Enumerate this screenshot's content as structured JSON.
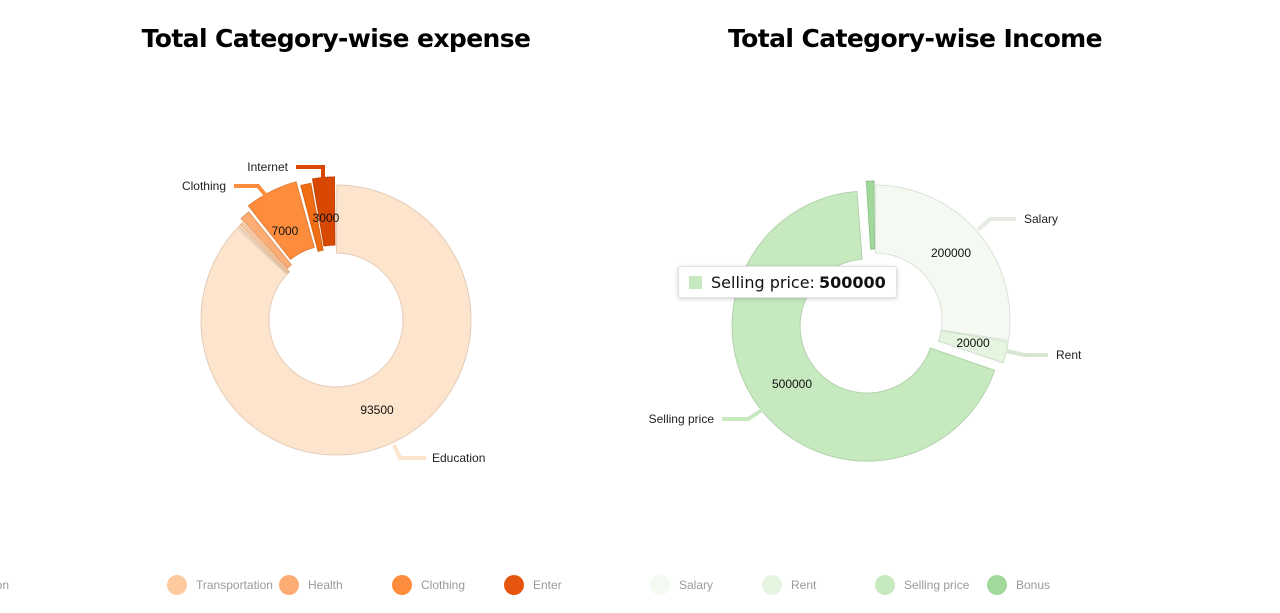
{
  "chart_data": [
    {
      "type": "pie",
      "variant": "donut",
      "title": "Total Category-wise expense",
      "slices": [
        {
          "label": "Education",
          "value": 93500,
          "color": "#fde4cd"
        },
        {
          "label": "",
          "value": 400,
          "color": "#fdd9b4"
        },
        {
          "label": "",
          "value": 600,
          "color": "#fdcaa0"
        },
        {
          "label": "",
          "value": 1500,
          "color": "#fdad73"
        },
        {
          "label": "Clothing",
          "value": 7000,
          "color": "#fd8c3c"
        },
        {
          "label": "",
          "value": 1500,
          "color": "#f16d13"
        },
        {
          "label": "Internet",
          "value": 3000,
          "color": "#d94801"
        }
      ],
      "data_labels": [
        "93500",
        "7000",
        "3000"
      ],
      "legend": [
        "ation",
        "Transportation",
        "Health",
        "Clothing",
        "Enter"
      ],
      "legend_colors": [
        "#fdd9b4",
        "#fdcaa0",
        "#fdad73",
        "#fd8c3c",
        "#e6550d"
      ],
      "legend_position": "bottom"
    },
    {
      "type": "pie",
      "variant": "donut",
      "title": "Total Category-wise Income",
      "slices": [
        {
          "label": "Salary",
          "value": 200000,
          "color": "#f4faf2"
        },
        {
          "label": "Rent",
          "value": 20000,
          "color": "#e5f5e0"
        },
        {
          "label": "Selling price",
          "value": 500000,
          "color": "#c7e9c0"
        },
        {
          "label": "",
          "value": 8000,
          "color": "#a1d99b"
        }
      ],
      "data_labels": [
        "200000",
        "20000",
        "500000"
      ],
      "legend": [
        "Salary",
        "Rent",
        "Selling price",
        "Bonus"
      ],
      "legend_colors": [
        "#f4faf2",
        "#e5f5e0",
        "#c7e9c0",
        "#a1d99b"
      ],
      "legend_position": "bottom",
      "tooltip": {
        "label": "Selling price:",
        "value": "500000",
        "color": "#c7e9c0"
      }
    }
  ]
}
